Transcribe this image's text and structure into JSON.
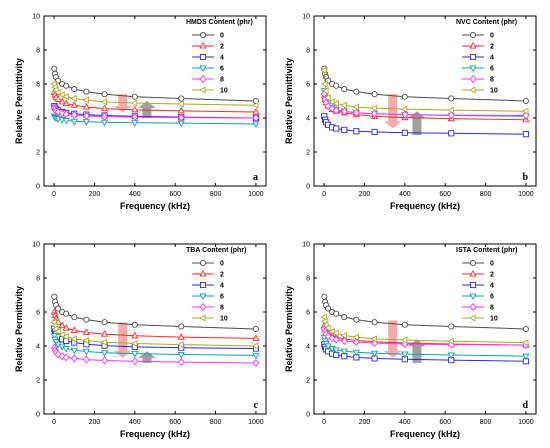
{
  "colors": {
    "series": [
      "#4d4d4d",
      "#ff2a2a",
      "#2a2ad4",
      "#10a0b0",
      "#ff33ff",
      "#a8a830"
    ],
    "arrow_down": "#f4a6a6",
    "arrow_up": "#9a9a9a"
  },
  "chart_data": [
    {
      "type": "line",
      "panel": "a",
      "legend_title": "HMDS Content (phr)",
      "xlabel": "Frequency (kHz)",
      "ylabel": "Relative Permittivity",
      "xlim": [
        -50,
        1050
      ],
      "ylim": [
        0,
        10
      ],
      "xticks": [
        0,
        200,
        400,
        600,
        800,
        1000
      ],
      "yticks": [
        0,
        2,
        4,
        6,
        8,
        10
      ],
      "legend_position": "top-right",
      "arrows": [
        {
          "direction": "down",
          "x": 340,
          "y_from": 5.4,
          "y_to": 4.3
        },
        {
          "direction": "up",
          "x": 460,
          "y_from": 4.0,
          "y_to": 5.0
        }
      ],
      "x": [
        1,
        5,
        10,
        20,
        40,
        60,
        100,
        160,
        250,
        400,
        630,
        1000
      ],
      "series": [
        {
          "name": "0",
          "marker": "circle",
          "values": [
            6.9,
            6.6,
            6.4,
            6.2,
            6.0,
            5.9,
            5.7,
            5.55,
            5.4,
            5.25,
            5.15,
            5.0
          ]
        },
        {
          "name": "2",
          "marker": "triangle-up",
          "values": [
            5.5,
            5.35,
            5.2,
            5.1,
            4.95,
            4.85,
            4.75,
            4.65,
            4.55,
            4.48,
            4.42,
            4.35
          ]
        },
        {
          "name": "4",
          "marker": "square",
          "values": [
            4.7,
            4.6,
            4.5,
            4.45,
            4.35,
            4.3,
            4.25,
            4.2,
            4.15,
            4.1,
            4.05,
            4.0
          ]
        },
        {
          "name": "6",
          "marker": "triangle-down",
          "values": [
            4.1,
            4.05,
            4.0,
            3.95,
            3.9,
            3.85,
            3.8,
            3.78,
            3.75,
            3.72,
            3.7,
            3.65
          ]
        },
        {
          "name": "8",
          "marker": "diamond",
          "values": [
            4.6,
            4.5,
            4.4,
            4.35,
            4.28,
            4.22,
            4.18,
            4.12,
            4.08,
            4.05,
            4.02,
            4.0
          ]
        },
        {
          "name": "10",
          "marker": "triangle-left",
          "values": [
            6.0,
            5.8,
            5.65,
            5.5,
            5.35,
            5.25,
            5.15,
            5.05,
            4.95,
            4.88,
            4.82,
            4.75
          ]
        }
      ]
    },
    {
      "type": "line",
      "panel": "b",
      "legend_title": "NVC Content (phr)",
      "xlabel": "Frequency (kHz)",
      "ylabel": "Relative Permittivity",
      "xlim": [
        -50,
        1050
      ],
      "ylim": [
        0,
        10
      ],
      "xticks": [
        0,
        200,
        400,
        600,
        800,
        1000
      ],
      "yticks": [
        0,
        2,
        4,
        6,
        8,
        10
      ],
      "legend_position": "top-right",
      "arrows": [
        {
          "direction": "down",
          "x": 340,
          "y_from": 5.4,
          "y_to": 3.4
        },
        {
          "direction": "up",
          "x": 460,
          "y_from": 3.0,
          "y_to": 4.4
        }
      ],
      "x": [
        1,
        5,
        10,
        20,
        40,
        60,
        100,
        160,
        250,
        400,
        630,
        1000
      ],
      "series": [
        {
          "name": "0",
          "marker": "circle",
          "values": [
            6.9,
            6.6,
            6.4,
            6.2,
            6.0,
            5.9,
            5.7,
            5.55,
            5.4,
            5.25,
            5.15,
            5.0
          ]
        },
        {
          "name": "2",
          "marker": "triangle-up",
          "values": [
            5.3,
            5.1,
            4.9,
            4.7,
            4.5,
            4.4,
            4.3,
            4.2,
            4.1,
            4.02,
            3.96,
            3.9
          ]
        },
        {
          "name": "4",
          "marker": "square",
          "values": [
            4.1,
            3.9,
            3.75,
            3.6,
            3.45,
            3.38,
            3.3,
            3.22,
            3.18,
            3.13,
            3.1,
            3.05
          ]
        },
        {
          "name": "6",
          "marker": "triangle-down",
          "values": [
            5.6,
            5.3,
            5.0,
            4.8,
            4.6,
            4.5,
            4.4,
            4.3,
            4.25,
            4.2,
            4.15,
            4.1
          ]
        },
        {
          "name": "8",
          "marker": "diamond",
          "values": [
            5.4,
            5.1,
            4.9,
            4.7,
            4.55,
            4.45,
            4.38,
            4.3,
            4.25,
            4.2,
            4.17,
            4.15
          ]
        },
        {
          "name": "10",
          "marker": "triangle-left",
          "values": [
            6.8,
            6.0,
            5.6,
            5.2,
            4.95,
            4.85,
            4.75,
            4.65,
            4.58,
            4.52,
            4.46,
            4.4
          ]
        }
      ]
    },
    {
      "type": "line",
      "panel": "c",
      "legend_title": "TBA Content (phr)",
      "xlabel": "Frequency (kHz)",
      "ylabel": "Relative Permittivity",
      "xlim": [
        -50,
        1050
      ],
      "ylim": [
        0,
        10
      ],
      "xticks": [
        0,
        200,
        400,
        600,
        800,
        1000
      ],
      "yticks": [
        0,
        2,
        4,
        6,
        8,
        10
      ],
      "legend_position": "top-right",
      "arrows": [
        {
          "direction": "down",
          "x": 340,
          "y_from": 5.4,
          "y_to": 3.3
        },
        {
          "direction": "up",
          "x": 460,
          "y_from": 3.0,
          "y_to": 3.7
        }
      ],
      "x": [
        1,
        5,
        10,
        20,
        40,
        60,
        100,
        160,
        250,
        400,
        630,
        1000
      ],
      "series": [
        {
          "name": "0",
          "marker": "circle",
          "values": [
            6.9,
            6.6,
            6.4,
            6.2,
            6.0,
            5.9,
            5.7,
            5.55,
            5.4,
            5.25,
            5.15,
            5.0
          ]
        },
        {
          "name": "2",
          "marker": "triangle-up",
          "values": [
            6.0,
            5.8,
            5.6,
            5.4,
            5.2,
            5.05,
            4.92,
            4.8,
            4.7,
            4.6,
            4.52,
            4.45
          ]
        },
        {
          "name": "4",
          "marker": "square",
          "values": [
            5.0,
            4.85,
            4.7,
            4.55,
            4.4,
            4.3,
            4.2,
            4.1,
            4.02,
            3.95,
            3.9,
            3.85
          ]
        },
        {
          "name": "6",
          "marker": "triangle-down",
          "values": [
            4.6,
            4.4,
            4.25,
            4.1,
            3.95,
            3.85,
            3.75,
            3.68,
            3.6,
            3.55,
            3.5,
            3.45
          ]
        },
        {
          "name": "8",
          "marker": "diamond",
          "values": [
            3.9,
            3.75,
            3.62,
            3.5,
            3.4,
            3.33,
            3.27,
            3.2,
            3.15,
            3.1,
            3.05,
            3.0
          ]
        },
        {
          "name": "10",
          "marker": "triangle-left",
          "values": [
            5.4,
            5.2,
            5.0,
            4.85,
            4.65,
            4.55,
            4.42,
            4.32,
            4.22,
            4.15,
            4.08,
            4.0
          ]
        }
      ]
    },
    {
      "type": "line",
      "panel": "d",
      "legend_title": "ISTA Content (phr)",
      "xlabel": "Frequency (kHz)",
      "ylabel": "Relative Permittivity",
      "xlim": [
        -50,
        1050
      ],
      "ylim": [
        0,
        10
      ],
      "xticks": [
        0,
        200,
        400,
        600,
        800,
        1000
      ],
      "yticks": [
        0,
        2,
        4,
        6,
        8,
        10
      ],
      "legend_position": "top-right",
      "arrows": [
        {
          "direction": "down",
          "x": 340,
          "y_from": 5.5,
          "y_to": 3.3
        },
        {
          "direction": "up",
          "x": 460,
          "y_from": 3.0,
          "y_to": 4.4
        }
      ],
      "x": [
        1,
        5,
        10,
        20,
        40,
        60,
        100,
        160,
        250,
        400,
        630,
        1000
      ],
      "series": [
        {
          "name": "0",
          "marker": "circle",
          "values": [
            6.9,
            6.6,
            6.4,
            6.2,
            6.0,
            5.9,
            5.7,
            5.55,
            5.4,
            5.25,
            5.15,
            5.0
          ]
        },
        {
          "name": "2",
          "marker": "triangle-up",
          "values": [
            5.2,
            5.05,
            4.9,
            4.75,
            4.6,
            4.5,
            4.42,
            4.32,
            4.25,
            4.18,
            4.12,
            4.05
          ]
        },
        {
          "name": "4",
          "marker": "square",
          "values": [
            4.1,
            3.95,
            3.8,
            3.68,
            3.55,
            3.47,
            3.4,
            3.33,
            3.27,
            3.22,
            3.17,
            3.1
          ]
        },
        {
          "name": "6",
          "marker": "triangle-down",
          "values": [
            4.5,
            4.3,
            4.15,
            4.0,
            3.85,
            3.77,
            3.7,
            3.63,
            3.57,
            3.52,
            3.47,
            3.4
          ]
        },
        {
          "name": "8",
          "marker": "diamond",
          "values": [
            5.0,
            4.85,
            4.7,
            4.57,
            4.45,
            4.37,
            4.3,
            4.23,
            4.17,
            4.12,
            4.08,
            4.05
          ]
        },
        {
          "name": "10",
          "marker": "triangle-left",
          "values": [
            5.7,
            5.45,
            5.25,
            5.05,
            4.85,
            4.75,
            4.62,
            4.52,
            4.42,
            4.35,
            4.28,
            4.2
          ]
        }
      ]
    }
  ]
}
